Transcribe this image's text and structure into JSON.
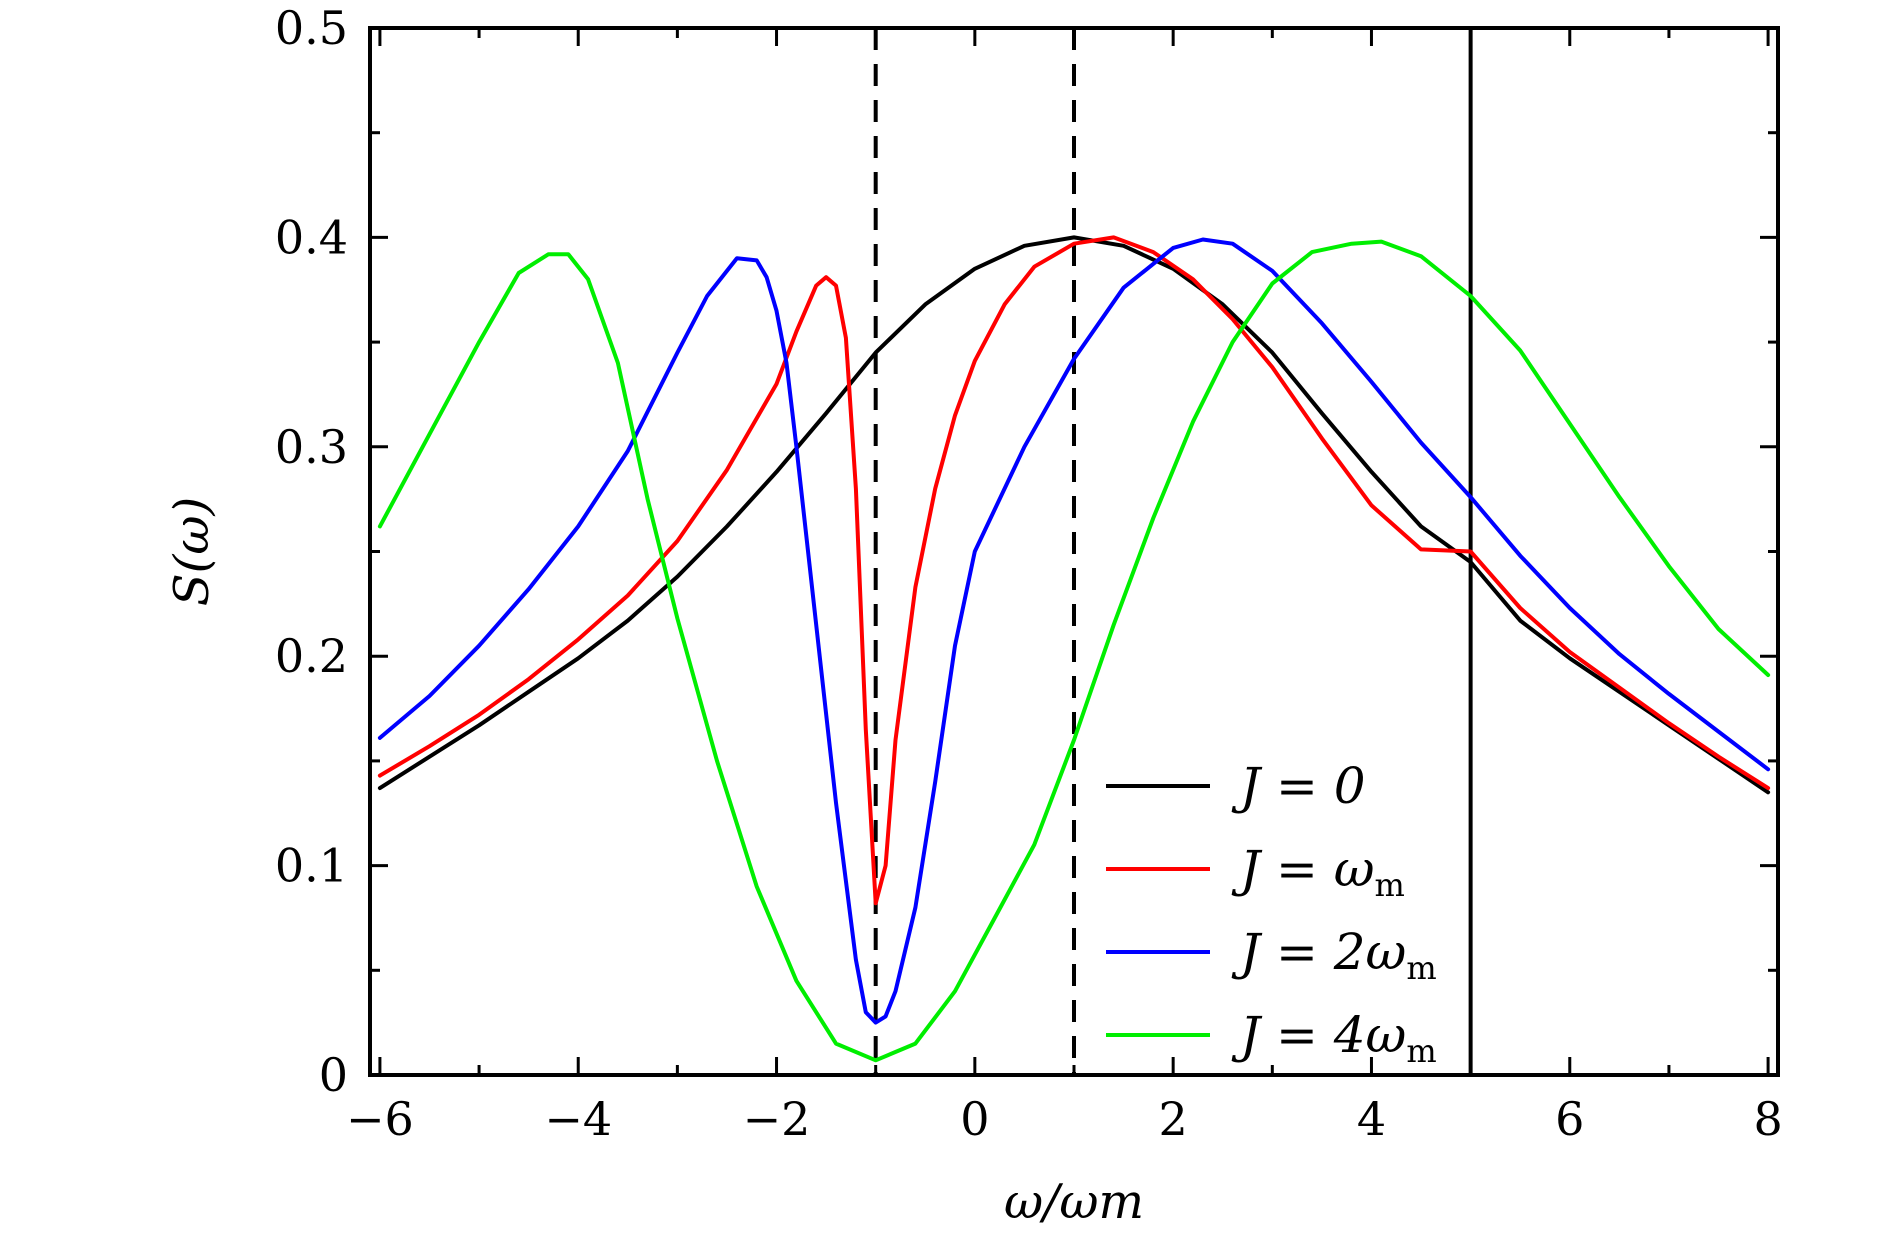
{
  "chart_data": {
    "type": "line",
    "xlabel": "ω/ωm",
    "ylabel": "S(ω)",
    "xlim": [
      -6.1,
      8.1
    ],
    "ylim": [
      0,
      0.5
    ],
    "xticks": [
      -6,
      -4,
      -2,
      0,
      2,
      4,
      6,
      8
    ],
    "xtick_labels": [
      "−6",
      "−4",
      "−2",
      "0",
      "2",
      "4",
      "6",
      "8"
    ],
    "yticks": [
      0,
      0.1,
      0.2,
      0.3,
      0.4,
      0.5
    ],
    "ytick_labels": [
      "0",
      "0.1",
      "0.2",
      "0.3",
      "0.4",
      "0.5"
    ],
    "grid": false,
    "legend_position": "bottom-right",
    "reference_lines": [
      {
        "x": -1,
        "style": "dashed"
      },
      {
        "x": 1,
        "style": "dashed"
      },
      {
        "x": 5,
        "style": "solid"
      }
    ],
    "series": [
      {
        "name": "J = 0",
        "legend_main": "J = 0",
        "legend_sub": "",
        "color": "#000000",
        "x": [
          -6.0,
          -5.5,
          -5.0,
          -4.5,
          -4.0,
          -3.5,
          -3.0,
          -2.5,
          -2.0,
          -1.5,
          -1.0,
          -0.5,
          0.0,
          0.5,
          1.0,
          1.5,
          2.0,
          2.5,
          3.0,
          3.5,
          4.0,
          4.5,
          5.0,
          5.5,
          6.0,
          6.5,
          7.0,
          7.5,
          8.0
        ],
        "y": [
          0.137,
          0.152,
          0.167,
          0.183,
          0.199,
          0.217,
          0.238,
          0.262,
          0.288,
          0.316,
          0.345,
          0.368,
          0.385,
          0.396,
          0.4,
          0.396,
          0.385,
          0.368,
          0.345,
          0.316,
          0.288,
          0.262,
          0.245,
          0.217,
          0.199,
          0.183,
          0.167,
          0.151,
          0.135
        ]
      },
      {
        "name": "J = ωm",
        "legend_main": "J = ω",
        "legend_sub": "m",
        "color": "#ff0000",
        "x": [
          -6.0,
          -5.5,
          -5.0,
          -4.5,
          -4.0,
          -3.5,
          -3.0,
          -2.5,
          -2.0,
          -1.8,
          -1.6,
          -1.5,
          -1.4,
          -1.3,
          -1.2,
          -1.1,
          -1.0,
          -0.9,
          -0.8,
          -0.6,
          -0.4,
          -0.2,
          0.0,
          0.3,
          0.6,
          1.0,
          1.4,
          1.8,
          2.2,
          2.6,
          3.0,
          3.5,
          4.0,
          4.5,
          5.0,
          5.5,
          6.0,
          6.5,
          7.0,
          7.5,
          8.0
        ],
        "y": [
          0.143,
          0.157,
          0.172,
          0.189,
          0.208,
          0.229,
          0.255,
          0.289,
          0.33,
          0.355,
          0.377,
          0.381,
          0.377,
          0.352,
          0.28,
          0.165,
          0.082,
          0.1,
          0.16,
          0.233,
          0.28,
          0.315,
          0.341,
          0.368,
          0.386,
          0.397,
          0.4,
          0.393,
          0.38,
          0.361,
          0.338,
          0.304,
          0.272,
          0.251,
          0.25,
          0.223,
          0.202,
          0.185,
          0.168,
          0.152,
          0.137
        ]
      },
      {
        "name": "J = 2ωm",
        "legend_main": "J = 2ω",
        "legend_sub": "m",
        "color": "#0000ff",
        "x": [
          -6.0,
          -5.5,
          -5.0,
          -4.5,
          -4.0,
          -3.5,
          -3.0,
          -2.7,
          -2.4,
          -2.2,
          -2.1,
          -2.0,
          -1.9,
          -1.8,
          -1.6,
          -1.4,
          -1.2,
          -1.1,
          -1.0,
          -0.9,
          -0.8,
          -0.6,
          -0.4,
          -0.2,
          0.0,
          0.5,
          1.0,
          1.5,
          2.0,
          2.3,
          2.6,
          3.0,
          3.5,
          4.0,
          4.5,
          5.0,
          5.5,
          6.0,
          6.5,
          7.0,
          7.5,
          8.0
        ],
        "y": [
          0.161,
          0.181,
          0.205,
          0.232,
          0.262,
          0.298,
          0.345,
          0.372,
          0.39,
          0.389,
          0.381,
          0.365,
          0.34,
          0.3,
          0.215,
          0.13,
          0.055,
          0.03,
          0.025,
          0.028,
          0.04,
          0.08,
          0.14,
          0.205,
          0.25,
          0.3,
          0.342,
          0.376,
          0.395,
          0.399,
          0.397,
          0.384,
          0.359,
          0.331,
          0.302,
          0.276,
          0.248,
          0.223,
          0.201,
          0.182,
          0.164,
          0.146
        ]
      },
      {
        "name": "J = 4ωm",
        "legend_main": "J = 4ω",
        "legend_sub": "m",
        "color": "#00ee00",
        "x": [
          -6.0,
          -5.5,
          -5.0,
          -4.6,
          -4.3,
          -4.1,
          -3.9,
          -3.6,
          -3.3,
          -3.0,
          -2.6,
          -2.2,
          -1.8,
          -1.4,
          -1.0,
          -0.6,
          -0.2,
          0.2,
          0.6,
          1.0,
          1.4,
          1.8,
          2.2,
          2.6,
          3.0,
          3.4,
          3.8,
          4.1,
          4.5,
          5.0,
          5.5,
          6.0,
          6.5,
          7.0,
          7.5,
          8.0
        ],
        "y": [
          0.262,
          0.306,
          0.35,
          0.383,
          0.392,
          0.392,
          0.38,
          0.34,
          0.275,
          0.218,
          0.15,
          0.09,
          0.045,
          0.015,
          0.007,
          0.015,
          0.04,
          0.075,
          0.11,
          0.16,
          0.215,
          0.266,
          0.312,
          0.35,
          0.378,
          0.393,
          0.397,
          0.398,
          0.391,
          0.372,
          0.346,
          0.311,
          0.276,
          0.243,
          0.213,
          0.191
        ]
      }
    ]
  }
}
